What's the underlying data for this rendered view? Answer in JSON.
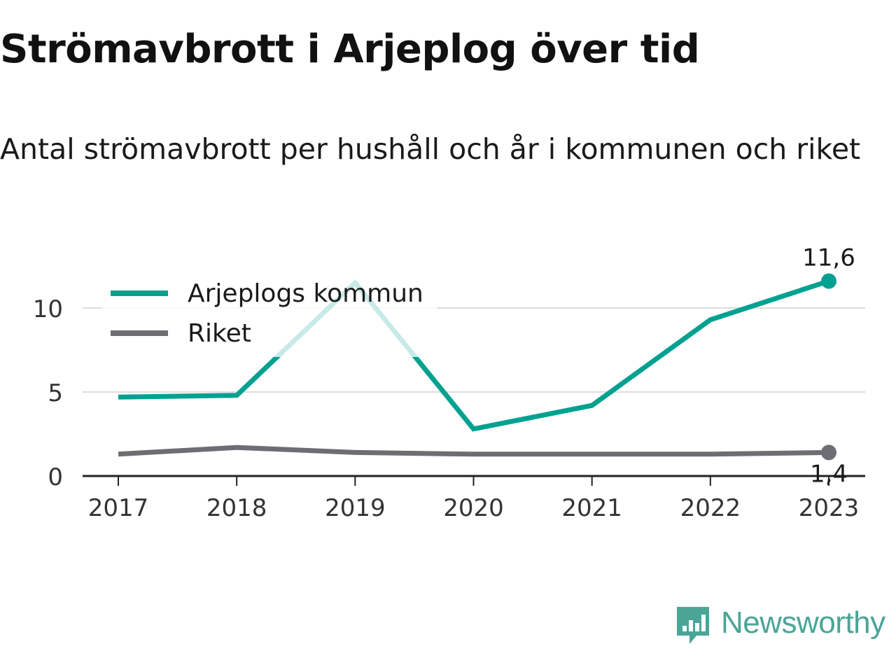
{
  "chart_data": {
    "type": "line",
    "title": "Strömavbrott i Arjeplog över tid",
    "subtitle": "Antal strömavbrott per hushåll och år i kommunen och riket",
    "x": [
      "2017",
      "2018",
      "2019",
      "2020",
      "2021",
      "2022",
      "2023"
    ],
    "yticks": [
      "0",
      "5",
      "10"
    ],
    "ylim": [
      0,
      12.5
    ],
    "grid": true,
    "legend": "top-left",
    "series": [
      {
        "name": "Arjeplogs kommun",
        "color": "#00a190",
        "values": [
          4.7,
          4.8,
          11.5,
          2.8,
          4.2,
          9.3,
          11.6
        ],
        "end_label": "11,6"
      },
      {
        "name": "Riket",
        "color": "#6e6d74",
        "values": [
          1.3,
          1.7,
          1.4,
          1.3,
          1.3,
          1.3,
          1.4
        ],
        "end_label": "1,4"
      }
    ]
  },
  "brand": {
    "name": "Newsworthy",
    "icon": "newsworthy-logo-icon",
    "color": "#4aa597"
  }
}
